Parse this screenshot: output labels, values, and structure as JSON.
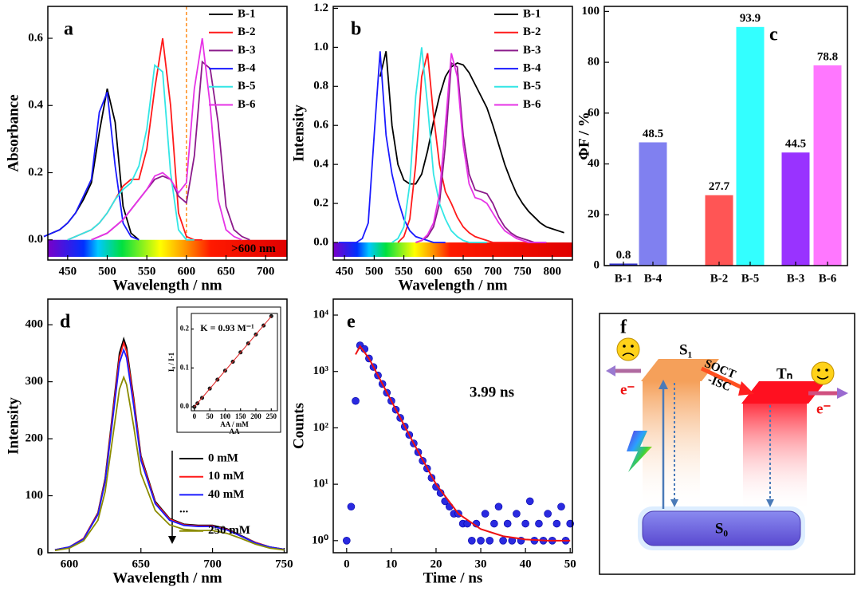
{
  "chart_data": [
    {
      "type": "line",
      "panel_label": "a",
      "xlabel": "Wavelength / nm",
      "ylabel": "Absorbance",
      "annotation": ">600 nm",
      "vline": 600,
      "xlim": [
        425,
        727
      ],
      "ylim": [
        -0.06,
        0.695
      ],
      "xticks": [
        450,
        500,
        550,
        600,
        650,
        700
      ],
      "yticks": [
        {
          "value": 0,
          "label": "0.0"
        },
        {
          "value": 0.2,
          "label": "0.2"
        },
        {
          "value": 0.4,
          "label": "0.4"
        },
        {
          "value": 0.6,
          "label": "0.6"
        }
      ],
      "legend": "upper right",
      "spectrum_bar": true,
      "x": [
        420,
        430,
        440,
        450,
        460,
        470,
        480,
        490,
        500,
        510,
        520,
        530,
        540,
        550,
        560,
        570,
        580,
        590,
        600,
        610,
        620,
        630,
        640,
        650,
        660,
        670,
        680,
        690,
        700,
        710,
        720
      ],
      "series": [
        {
          "name": "B-1",
          "color": "#000000",
          "values": [
            0.01,
            0.02,
            0.03,
            0.05,
            0.08,
            0.12,
            0.17,
            0.32,
            0.45,
            0.35,
            0.1,
            0.02,
            0.0,
            null,
            null,
            null,
            null,
            null,
            null,
            null,
            null,
            null,
            null,
            null,
            null,
            null,
            null,
            null,
            null,
            null,
            null
          ]
        },
        {
          "name": "B-2",
          "color": "#ff1a1a",
          "values": [
            null,
            null,
            null,
            0.0,
            0.01,
            0.02,
            0.03,
            0.05,
            0.08,
            0.12,
            0.16,
            0.18,
            0.18,
            0.27,
            0.45,
            0.6,
            0.4,
            0.08,
            0.01,
            0.0,
            0.0,
            null,
            null,
            null,
            null,
            null,
            null,
            null,
            null,
            null,
            null
          ]
        },
        {
          "name": "B-3",
          "color": "#8b1a8b",
          "values": [
            null,
            null,
            null,
            null,
            null,
            null,
            0.0,
            0.01,
            0.02,
            0.04,
            0.06,
            0.09,
            0.12,
            0.15,
            0.18,
            0.19,
            0.18,
            0.13,
            0.11,
            0.25,
            0.53,
            0.51,
            0.35,
            0.1,
            0.03,
            0.01,
            0.0,
            null,
            null,
            null,
            null
          ]
        },
        {
          "name": "B-4",
          "color": "#1a1aff",
          "values": [
            0.01,
            0.02,
            0.03,
            0.05,
            0.08,
            0.13,
            0.18,
            0.38,
            0.44,
            0.22,
            0.05,
            0.01,
            0.0,
            null,
            null,
            null,
            null,
            null,
            null,
            null,
            null,
            null,
            null,
            null,
            null,
            null,
            null,
            null,
            null,
            null,
            null
          ]
        },
        {
          "name": "B-5",
          "color": "#33e6e6",
          "values": [
            null,
            null,
            null,
            0.0,
            0.01,
            0.02,
            0.03,
            0.05,
            0.08,
            0.12,
            0.15,
            0.17,
            0.22,
            0.33,
            0.52,
            0.5,
            0.2,
            0.03,
            0.0,
            0.0,
            null,
            null,
            null,
            null,
            null,
            null,
            null,
            null,
            null,
            null,
            null
          ]
        },
        {
          "name": "B-6",
          "color": "#e633e6",
          "values": [
            null,
            null,
            null,
            null,
            null,
            null,
            0.0,
            0.01,
            0.02,
            0.04,
            0.06,
            0.09,
            0.12,
            0.15,
            0.19,
            0.2,
            0.18,
            0.14,
            0.17,
            0.45,
            0.6,
            0.4,
            0.12,
            0.03,
            0.01,
            0.0,
            null,
            null,
            null,
            null,
            null
          ]
        }
      ]
    },
    {
      "type": "line",
      "panel_label": "b",
      "xlabel": "Wavelength / nm",
      "ylabel": "Intensity",
      "xlim": [
        431,
        834
      ],
      "ylim": [
        -0.09,
        1.21
      ],
      "xticks": [
        450,
        500,
        550,
        600,
        650,
        700,
        750,
        800
      ],
      "yticks": [
        {
          "value": 0,
          "label": "0.0"
        },
        {
          "value": 0.2,
          "label": "0.2"
        },
        {
          "value": 0.4,
          "label": "0.4"
        },
        {
          "value": 0.6,
          "label": "0.6"
        },
        {
          "value": 0.8,
          "label": "0.8"
        },
        {
          "value": 1,
          "label": "1.0"
        },
        {
          "value": 1.2,
          "label": "1.2"
        }
      ],
      "legend": "upper right",
      "spectrum_bar": true,
      "x": [
        440,
        450,
        460,
        470,
        480,
        490,
        500,
        510,
        520,
        530,
        540,
        550,
        560,
        570,
        580,
        590,
        600,
        610,
        620,
        630,
        640,
        650,
        660,
        670,
        680,
        690,
        700,
        710,
        720,
        730,
        740,
        750,
        760,
        770,
        780,
        790,
        800,
        810,
        820
      ],
      "series": [
        {
          "name": "B-1",
          "color": "#000000",
          "values": [
            null,
            null,
            null,
            null,
            null,
            null,
            null,
            0.85,
            0.98,
            0.6,
            0.4,
            0.32,
            0.3,
            0.3,
            0.35,
            0.47,
            0.62,
            0.75,
            0.85,
            0.9,
            0.92,
            0.91,
            0.87,
            0.81,
            0.75,
            0.69,
            0.6,
            0.5,
            0.4,
            0.32,
            0.25,
            0.2,
            0.16,
            0.13,
            0.1,
            0.08,
            0.07,
            0.06,
            0.05
          ]
        },
        {
          "name": "B-2",
          "color": "#ff1a1a",
          "values": [
            null,
            null,
            null,
            null,
            null,
            null,
            null,
            null,
            null,
            null,
            0.0,
            0.03,
            0.12,
            0.4,
            0.85,
            0.97,
            0.65,
            0.4,
            0.26,
            0.2,
            0.13,
            0.08,
            0.05,
            0.03,
            0.02,
            0.01,
            0.0,
            0.0,
            0.0,
            0.0,
            0.0,
            0.0,
            0.0,
            null,
            null,
            null,
            null,
            null,
            null
          ]
        },
        {
          "name": "B-3",
          "color": "#8b1a8b",
          "values": [
            null,
            null,
            null,
            null,
            null,
            null,
            null,
            null,
            null,
            null,
            null,
            null,
            null,
            0.0,
            0.01,
            0.03,
            0.08,
            0.2,
            0.5,
            0.92,
            0.9,
            0.55,
            0.35,
            0.27,
            0.26,
            0.25,
            0.2,
            0.13,
            0.08,
            0.05,
            0.03,
            0.02,
            0.01,
            0.0,
            0.0,
            0.0,
            null,
            null,
            null
          ]
        },
        {
          "name": "B-4",
          "color": "#1a1aff",
          "values": [
            0.0,
            0.0,
            0.0,
            0.0,
            0.02,
            0.1,
            0.55,
            0.98,
            0.55,
            0.35,
            0.22,
            0.12,
            0.06,
            0.03,
            0.02,
            0.01,
            0.0,
            0.0,
            0.0,
            null,
            null,
            null,
            null,
            null,
            null,
            null,
            null,
            null,
            null,
            null,
            null,
            null,
            null,
            null,
            null,
            null,
            null,
            null,
            null
          ]
        },
        {
          "name": "B-5",
          "color": "#33e6e6",
          "values": [
            null,
            null,
            null,
            null,
            null,
            null,
            null,
            null,
            null,
            0.0,
            0.02,
            0.08,
            0.3,
            0.75,
            1.0,
            0.7,
            0.35,
            0.2,
            0.12,
            0.06,
            0.03,
            0.01,
            0.0,
            0.0,
            0.0,
            0.0,
            null,
            null,
            null,
            null,
            null,
            null,
            null,
            null,
            null,
            null,
            null,
            null,
            null
          ]
        },
        {
          "name": "B-6",
          "color": "#e633e6",
          "values": [
            null,
            null,
            null,
            null,
            null,
            null,
            null,
            null,
            null,
            null,
            null,
            null,
            null,
            0.0,
            0.01,
            0.04,
            0.1,
            0.25,
            0.6,
            0.97,
            0.85,
            0.5,
            0.3,
            0.23,
            0.22,
            0.2,
            0.15,
            0.1,
            0.06,
            0.04,
            0.02,
            0.01,
            0.0,
            0.0,
            0.0,
            0.0,
            null,
            null,
            null
          ]
        }
      ]
    },
    {
      "type": "bar",
      "panel_label": "c",
      "ylabel": "ΦF / %",
      "categories": [
        "B-1",
        "B-4",
        "B-2",
        "B-5",
        "B-3",
        "B-6"
      ],
      "values": [
        0.8,
        48.5,
        27.7,
        93.9,
        44.5,
        78.8
      ],
      "colors": [
        "#3333cc",
        "#8080f0",
        "#ff5555",
        "#33ffff",
        "#9933ff",
        "#ff77ff"
      ],
      "ylim": [
        0,
        102
      ],
      "yticks": [
        0,
        20,
        40,
        60,
        80,
        100
      ]
    },
    {
      "type": "line",
      "panel_label": "d",
      "xlabel": "Wavelength / nm",
      "ylabel": "Intensity",
      "xlim": [
        585,
        752
      ],
      "ylim": [
        0,
        445
      ],
      "xticks": [
        600,
        650,
        700,
        750
      ],
      "yticks": [
        0,
        100,
        200,
        300,
        400
      ],
      "legend": "lower right",
      "legend_ellipsis": "...",
      "x": [
        590,
        600,
        610,
        620,
        625,
        630,
        635,
        638,
        640,
        645,
        650,
        660,
        670,
        680,
        690,
        700,
        710,
        720,
        730,
        740,
        750
      ],
      "series": [
        {
          "name": "0 mM",
          "color": "#000000",
          "values": [
            5,
            10,
            25,
            70,
            130,
            240,
            350,
            375,
            360,
            270,
            170,
            90,
            60,
            50,
            48,
            48,
            42,
            30,
            18,
            10,
            6
          ]
        },
        {
          "name": "10 mM",
          "color": "#ff1a1a",
          "values": [
            5,
            10,
            25,
            69,
            127,
            235,
            343,
            368,
            353,
            265,
            167,
            88,
            59,
            49,
            47,
            47,
            41,
            29,
            18,
            10,
            6
          ]
        },
        {
          "name": "40 mM",
          "color": "#1a1aff",
          "values": [
            5,
            10,
            24,
            67,
            124,
            228,
            333,
            356,
            342,
            257,
            162,
            86,
            57,
            48,
            46,
            46,
            40,
            29,
            17,
            10,
            6
          ]
        },
        {
          "name": "250 mM",
          "color": "#8b8b00",
          "values": [
            4,
            8,
            21,
            57,
            107,
            197,
            287,
            308,
            295,
            221,
            139,
            74,
            49,
            41,
            39,
            39,
            34,
            25,
            15,
            8,
            5
          ]
        }
      ]
    },
    {
      "type": "scatter",
      "annotation": "K = 0.93 M⁻¹",
      "xlabel": "AA / mM",
      "xlabel_extra": "AA",
      "ylabel": "I₀ / I-1",
      "xlim": [
        -10,
        270
      ],
      "ylim": [
        -0.01,
        0.24
      ],
      "xticks": [
        0,
        50,
        100,
        150,
        200,
        250
      ],
      "yticks": [
        {
          "value": 0,
          "label": "0.0"
        },
        {
          "value": 0.1,
          "label": "0.1"
        },
        {
          "value": 0.2,
          "label": "0.2"
        }
      ],
      "color": "#222222",
      "x": [
        0,
        10,
        25,
        50,
        75,
        100,
        125,
        150,
        175,
        200,
        225,
        250
      ],
      "values": [
        0.0,
        0.009,
        0.023,
        0.047,
        0.07,
        0.093,
        0.116,
        0.14,
        0.163,
        0.186,
        0.209,
        0.233
      ],
      "fit": {
        "color": "#dd2222",
        "x": [
          0,
          250
        ],
        "y": [
          0,
          0.2325
        ]
      }
    },
    {
      "type": "scatter",
      "panel_label": "e",
      "xlabel": "Time / ns",
      "ylabel": "Counts",
      "annotation": "3.99 ns",
      "log_y": true,
      "xlim": [
        -3,
        50.5
      ],
      "ylim": [
        0.61,
        19200
      ],
      "xticks": [
        0,
        10,
        20,
        30,
        40,
        50
      ],
      "yticks": [
        {
          "value": 1,
          "label": "10⁰"
        },
        {
          "value": 10,
          "label": "10¹"
        },
        {
          "value": 100,
          "label": "10²"
        },
        {
          "value": 1000,
          "label": "10³"
        },
        {
          "value": 10000,
          "label": "10⁴"
        }
      ],
      "color": "#2a2ae0",
      "x": [
        0,
        1,
        2,
        3,
        4,
        5,
        6,
        7,
        8,
        9,
        10,
        11,
        12,
        13,
        14,
        15,
        16,
        17,
        18,
        19,
        20,
        21,
        22,
        23,
        24,
        25,
        26,
        27,
        28,
        29,
        30,
        31,
        32,
        33,
        34,
        35,
        36,
        37,
        38,
        39,
        40,
        41,
        42,
        43,
        44,
        45,
        46,
        47,
        48,
        49,
        50
      ],
      "values": [
        1,
        4,
        300,
        2900,
        2500,
        1700,
        1200,
        850,
        600,
        420,
        300,
        210,
        150,
        105,
        75,
        53,
        37,
        26,
        19,
        13,
        9,
        7,
        5,
        4,
        3,
        3,
        2,
        2,
        1,
        2,
        1,
        3,
        1,
        2,
        4,
        1,
        2,
        1,
        3,
        1,
        2,
        5,
        1,
        2,
        1,
        3,
        1,
        2,
        4,
        1,
        2
      ],
      "fit": {
        "color": "#ee1111",
        "x": [
          2,
          3,
          5,
          10,
          15,
          20,
          25,
          30,
          35,
          40,
          45,
          50
        ],
        "y": [
          2000,
          2800,
          1700,
          300,
          53,
          10,
          3,
          1.6,
          1.2,
          1.05,
          1,
          1
        ]
      }
    }
  ],
  "diagram": {
    "panel_label": "f",
    "s1": "S₁",
    "tn": "Tₙ",
    "s0": "S₀",
    "transition": [
      "SOCT",
      "-ISC"
    ],
    "electron_left": "e⁻",
    "electron_right": "e⁻"
  }
}
